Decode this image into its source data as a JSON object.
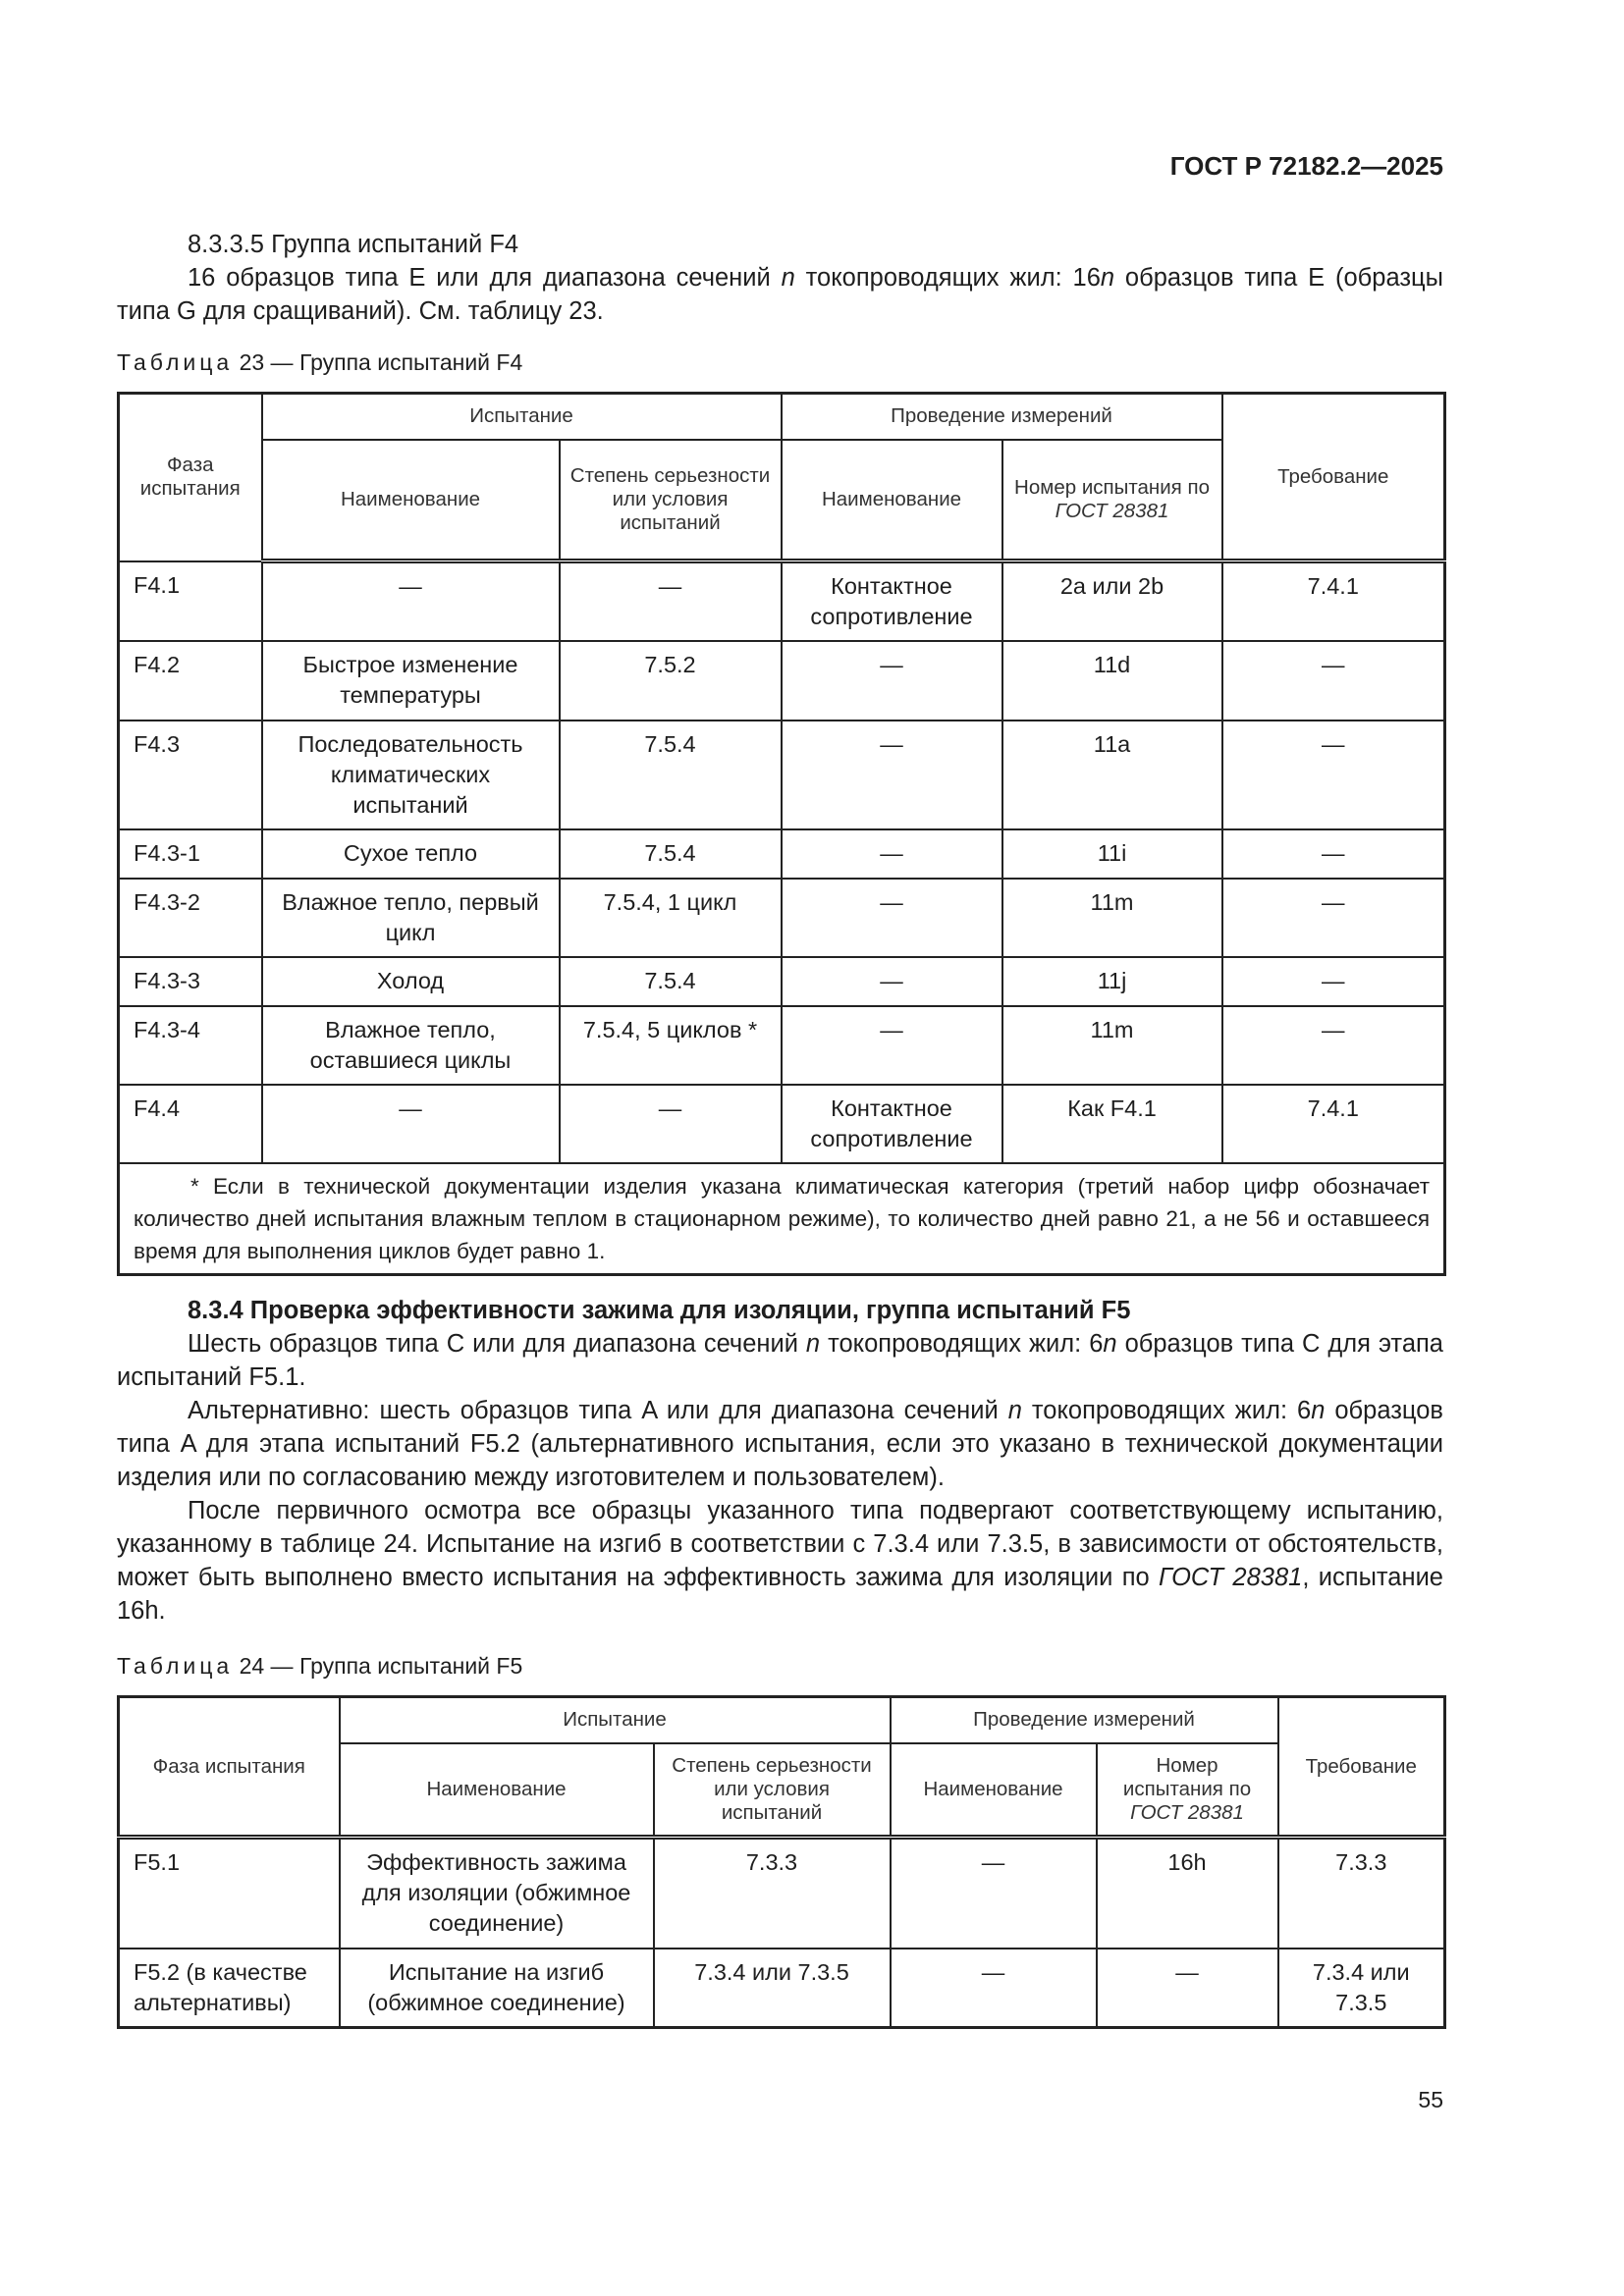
{
  "header": {
    "doc_code": "ГОСТ Р 72182.2—2025"
  },
  "section_835": {
    "title": "8.3.3.5 Группа испытаний F4",
    "text_a": "16 образцов типа E или для диапазона сечений ",
    "n": "n",
    "text_b": " токопроводящих жил: 16",
    "text_c": " образцов типа E (образцы типа G для сращиваний). См. таблицу 23."
  },
  "table23": {
    "caption_word": "Таблица",
    "caption_rest": " 23 — Группа испытаний F4",
    "headers": {
      "phase": "Фаза испытания",
      "test": "Испытание",
      "measure": "Проведение измерений",
      "name": "Наименование",
      "severity": "Степень серьезности или условия испытаний",
      "mname": "Наименование",
      "number": "Номер испытания по ",
      "gost": "ГОСТ 28381",
      "requirement": "Требование"
    },
    "rows": [
      [
        "F4.1",
        "—",
        "—",
        "Контактное сопротивление",
        "2a или 2b",
        "7.4.1"
      ],
      [
        "F4.2",
        "Быстрое изменение температуры",
        "7.5.2",
        "—",
        "11d",
        "—"
      ],
      [
        "F4.3",
        "Последовательность климатических испытаний",
        "7.5.4",
        "—",
        "11a",
        "—"
      ],
      [
        "F4.3-1",
        "Сухое тепло",
        "7.5.4",
        "—",
        "11i",
        "—"
      ],
      [
        "F4.3-2",
        "Влажное тепло, первый цикл",
        "7.5.4, 1 цикл",
        "—",
        "11m",
        "—"
      ],
      [
        "F4.3-3",
        "Холод",
        "7.5.4",
        "—",
        "11j",
        "—"
      ],
      [
        "F4.3-4",
        "Влажное тепло, оставшиеся циклы",
        "7.5.4, 5 циклов *",
        "—",
        "11m",
        "—"
      ],
      [
        "F4.4",
        "—",
        "—",
        "Контактное сопротивление",
        "Как F4.1",
        "7.4.1"
      ]
    ],
    "footnote": "* Если в технической документации изделия указана климатическая категория (третий набор цифр обозначает количество дней испытания влажным теплом в стационарном режиме), то количество дней равно 21, а не 56 и оставшееся время для выполнения циклов будет равно 1."
  },
  "section_834": {
    "title": "8.3.4 Проверка эффективности зажима для изоляции, группа испытаний F5",
    "p1_a": "Шесть образцов типа C или для диапазона сечений ",
    "p1_b": " токопроводящих жил: 6",
    "p1_c": " образцов типа C для этапа испытаний F5.1.",
    "p2_a": "Альтернативно: шесть образцов типа A или для диапазона сечений ",
    "p2_b": " токопроводящих жил: 6",
    "p2_c": " образцов типа A для этапа испытаний F5.2 (альтернативного испытания, если это указано в технической документации изделия или по согласованию между изготовителем и пользователем).",
    "p3_a": "После первичного осмотра все образцы указанного типа подвергают соответствующему испытанию, указанному в таблице 24. Испытание на изгиб в соответствии с 7.3.4 или 7.3.5, в зависимости от обстоятельств, может быть выполнено вместо испытания на эффективность зажима для изоляции по ",
    "p3_gost": "ГОСТ 28381",
    "p3_b": ", испытание 16h."
  },
  "table24": {
    "caption_word": "Таблица",
    "caption_rest": " 24 — Группа испытаний F5",
    "headers": {
      "phase": "Фаза испытания",
      "test": "Испытание",
      "measure": "Проведение измерений",
      "name": "Наименование",
      "severity": "Степень серьезности или условия испытаний",
      "mname": "Наименование",
      "number": "Номер испытания по ",
      "gost": "ГОСТ 28381",
      "requirement": "Требование"
    },
    "rows": [
      [
        "F5.1",
        "Эффективность зажима для изоляции (обжимное соединение)",
        "7.3.3",
        "—",
        "16h",
        "7.3.3"
      ],
      [
        "F5.2 (в качестве альтернативы)",
        "Испытание на изгиб (обжимное соединение)",
        "7.3.4 или 7.3.5",
        "—",
        "—",
        "7.3.4 или 7.3.5"
      ]
    ]
  },
  "page_number": "55"
}
